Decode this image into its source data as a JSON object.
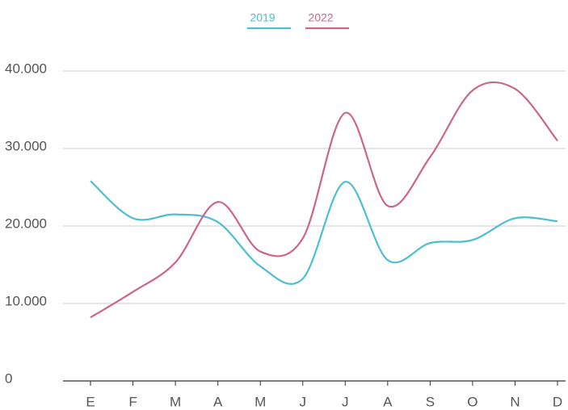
{
  "chart_data": {
    "type": "line",
    "categories": [
      "E",
      "F",
      "M",
      "A",
      "M",
      "J",
      "J",
      "A",
      "S",
      "O",
      "N",
      "D"
    ],
    "series": [
      {
        "name": "2019",
        "color": "#4bbfcf",
        "values": [
          25800,
          21000,
          21500,
          20500,
          14800,
          13200,
          25700,
          15600,
          17800,
          18200,
          21000,
          20600
        ]
      },
      {
        "name": "2022",
        "color": "#cc6688",
        "values": [
          8200,
          11500,
          15300,
          23100,
          16700,
          18400,
          34600,
          22600,
          28900,
          37500,
          37700,
          31000
        ]
      }
    ],
    "ylim": [
      0,
      40000
    ],
    "yticks": [
      {
        "value": 0,
        "label": "0"
      },
      {
        "value": 10000,
        "label": "10.000"
      },
      {
        "value": 20000,
        "label": "20.000"
      },
      {
        "value": 30000,
        "label": "30.000"
      },
      {
        "value": 40000,
        "label": "40.000"
      }
    ],
    "grid": true,
    "legend": "top"
  }
}
